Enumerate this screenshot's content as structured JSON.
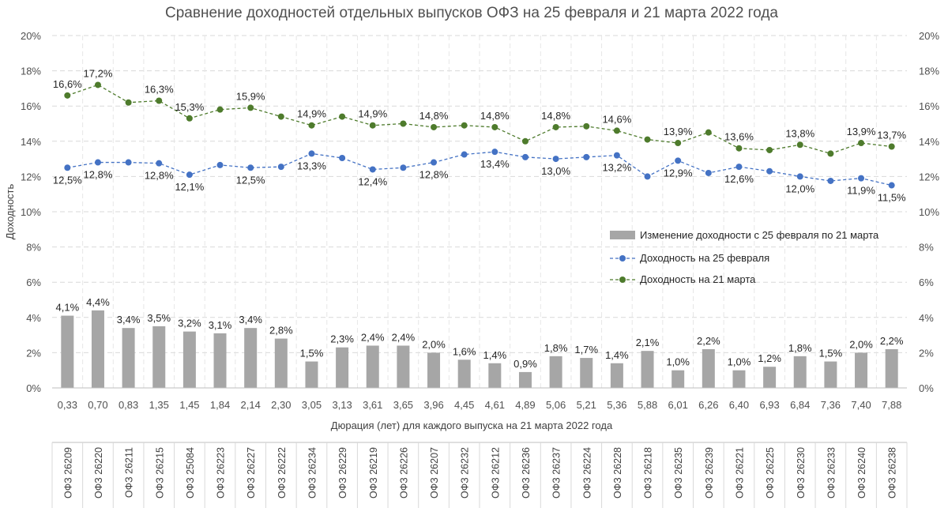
{
  "chart_data": {
    "type": "bar+line",
    "title": "Сравнение доходностей отдельных выпусков ОФЗ на 25 февраля и 21 марта 2022 года",
    "ylabel": "Доходность",
    "xlabel": "Дюрация (лет) для каждого выпуска на 21 марта 2022 года",
    "ylim": [
      0,
      20
    ],
    "yticks": [
      "0%",
      "2%",
      "4%",
      "6%",
      "8%",
      "10%",
      "12%",
      "14%",
      "16%",
      "18%",
      "20%"
    ],
    "grid": true,
    "legend_position": "middle-right",
    "durations": [
      "0,33",
      "0,70",
      "0,83",
      "1,35",
      "1,45",
      "1,84",
      "2,14",
      "2,30",
      "3,05",
      "3,13",
      "3,61",
      "3,65",
      "3,96",
      "4,45",
      "4,61",
      "4,89",
      "5,06",
      "5,21",
      "5,36",
      "5,88",
      "6,01",
      "6,26",
      "6,40",
      "6,93",
      "6,84",
      "7,36",
      "7,40",
      "7,88"
    ],
    "categories": [
      "ОФЗ 26209",
      "ОФЗ 26220",
      "ОФЗ 26211",
      "ОФЗ 26215",
      "ОФЗ 25084",
      "ОФЗ 26223",
      "ОФЗ 26227",
      "ОФЗ 26222",
      "ОФЗ 26234",
      "ОФЗ 26229",
      "ОФЗ 26219",
      "ОФЗ 26226",
      "ОФЗ 26207",
      "ОФЗ 26232",
      "ОФЗ 26212",
      "ОФЗ 26236",
      "ОФЗ 26237",
      "ОФЗ 26224",
      "ОФЗ 26228",
      "ОФЗ 26218",
      "ОФЗ 26235",
      "ОФЗ 26239",
      "ОФЗ 26221",
      "ОФЗ 26225",
      "ОФЗ 26230",
      "ОФЗ 26233",
      "ОФЗ 26240",
      "ОФЗ 26238"
    ],
    "series": [
      {
        "name": "Изменение доходности с 25 февраля по 21 марта",
        "kind": "bar",
        "color": "#a6a6a6",
        "values": [
          4.1,
          4.4,
          3.4,
          3.5,
          3.2,
          3.1,
          3.4,
          2.8,
          1.5,
          2.3,
          2.4,
          2.4,
          2.0,
          1.6,
          1.4,
          0.9,
          1.8,
          1.7,
          1.4,
          2.1,
          1.0,
          2.2,
          1.0,
          1.2,
          1.8,
          1.5,
          2.0,
          2.2
        ],
        "labels": [
          "4,1%",
          "4,4%",
          "3,4%",
          "3,5%",
          "3,2%",
          "3,1%",
          "3,4%",
          "2,8%",
          "1,5%",
          "2,3%",
          "2,4%",
          "2,4%",
          "2,0%",
          "1,6%",
          "1,4%",
          "0,9%",
          "1,8%",
          "1,7%",
          "1,4%",
          "2,1%",
          "1,0%",
          "2,2%",
          "1,0%",
          "1,2%",
          "1,8%",
          "1,5%",
          "2,0%",
          "2,2%"
        ]
      },
      {
        "name": "Доходность на 25 февраля",
        "kind": "line",
        "color": "#4472c4",
        "values": [
          12.5,
          12.8,
          12.8,
          12.75,
          12.1,
          12.65,
          12.5,
          12.55,
          13.3,
          13.05,
          12.4,
          12.5,
          12.8,
          13.25,
          13.4,
          13.1,
          13.0,
          13.1,
          13.2,
          12.0,
          12.9,
          12.2,
          12.55,
          12.3,
          12.0,
          11.75,
          11.9,
          11.5
        ],
        "labels": [
          "12,5%",
          "12,8%",
          "",
          "12,8%",
          "12,1%",
          "",
          "12,5%",
          "",
          "13,3%",
          "",
          "12,4%",
          "",
          "12,8%",
          "",
          "13,4%",
          "",
          "13,0%",
          "",
          "13,2%",
          "",
          "12,9%",
          "",
          "12,6%",
          "",
          "12,0%",
          "",
          "11,9%",
          "11,5%"
        ]
      },
      {
        "name": "Доходность на 21 марта",
        "kind": "line",
        "color": "#4e7b2c",
        "values": [
          16.6,
          17.2,
          16.2,
          16.3,
          15.3,
          15.8,
          15.9,
          15.4,
          14.9,
          15.4,
          14.9,
          15.0,
          14.8,
          14.9,
          14.8,
          14.0,
          14.8,
          14.85,
          14.6,
          14.1,
          13.9,
          14.5,
          13.6,
          13.5,
          13.8,
          13.3,
          13.9,
          13.7
        ],
        "labels": [
          "16,6%",
          "17,2%",
          "",
          "16,3%",
          "15,3%",
          "",
          "15,9%",
          "",
          "14,9%",
          "",
          "14,9%",
          "",
          "14,8%",
          "",
          "14,8%",
          "",
          "14,8%",
          "",
          "14,6%",
          "",
          "13,9%",
          "",
          "13,6%",
          "",
          "13,8%",
          "",
          "13,9%",
          "13,7%"
        ]
      }
    ]
  }
}
